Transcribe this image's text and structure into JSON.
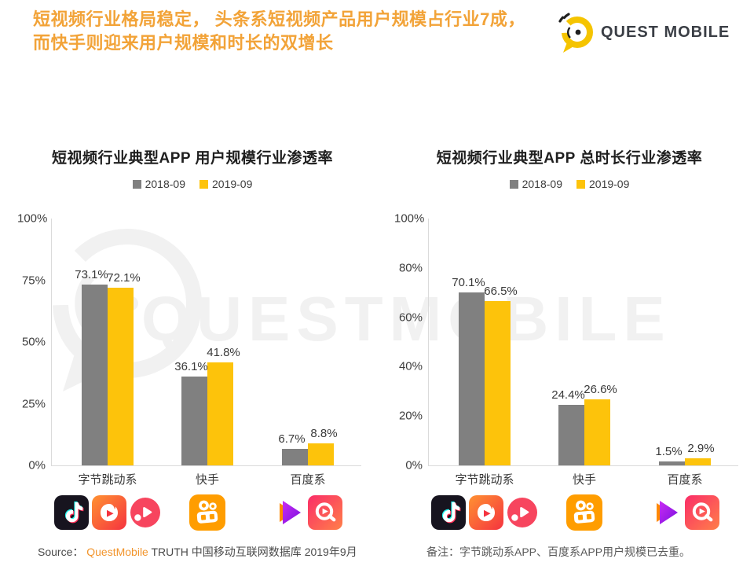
{
  "header": {
    "line1": "短视频行业格局稳定， 头条系短视频产品用户规模占行业7成，",
    "line2": "而快手则迎来用户规模和时长的双增长",
    "accent_color": "#F2A338"
  },
  "logo": {
    "brand": "QUEST MOBILE"
  },
  "watermark": {
    "text": "QUESTMOBILE"
  },
  "chart_data": [
    {
      "type": "bar",
      "title": "短视频行业典型APP 用户规模行业渗透率",
      "categories": [
        "字节跳动系",
        "快手",
        "百度系"
      ],
      "series": [
        {
          "name": "2018-09",
          "color": "#808080",
          "values": [
            73.1,
            36.1,
            6.7
          ]
        },
        {
          "name": "2019-09",
          "color": "#FDC30B",
          "values": [
            72.1,
            41.8,
            8.8
          ]
        }
      ],
      "value_suffix": "%",
      "ylim": [
        0,
        100
      ],
      "yticks": [
        "0%",
        "25%",
        "50%",
        "75%",
        "100%"
      ],
      "legend_position": "top",
      "grid": false
    },
    {
      "type": "bar",
      "title": "短视频行业典型APP 总时长行业渗透率",
      "categories": [
        "字节跳动系",
        "快手",
        "百度系"
      ],
      "series": [
        {
          "name": "2018-09",
          "color": "#808080",
          "values": [
            70.1,
            24.4,
            1.5
          ]
        },
        {
          "name": "2019-09",
          "color": "#FDC30B",
          "values": [
            66.5,
            26.6,
            2.9
          ]
        }
      ],
      "value_suffix": "%",
      "ylim": [
        0,
        100
      ],
      "yticks": [
        "0%",
        "20%",
        "40%",
        "60%",
        "80%",
        "100%"
      ],
      "legend_position": "top",
      "grid": false
    }
  ],
  "app_icon_groups": [
    [
      "douyin",
      "huoshan",
      "xigua"
    ],
    [
      "kuaishou"
    ],
    [
      "haokan",
      "quanmin"
    ]
  ],
  "footer": {
    "source_prefix": "Source：",
    "source_brand": "QuestMobile",
    "source_rest": " TRUTH 中国移动互联网数据库 2019年9月",
    "note": "备注：字节跳动系APP、百度系APP用户规模已去重。"
  }
}
